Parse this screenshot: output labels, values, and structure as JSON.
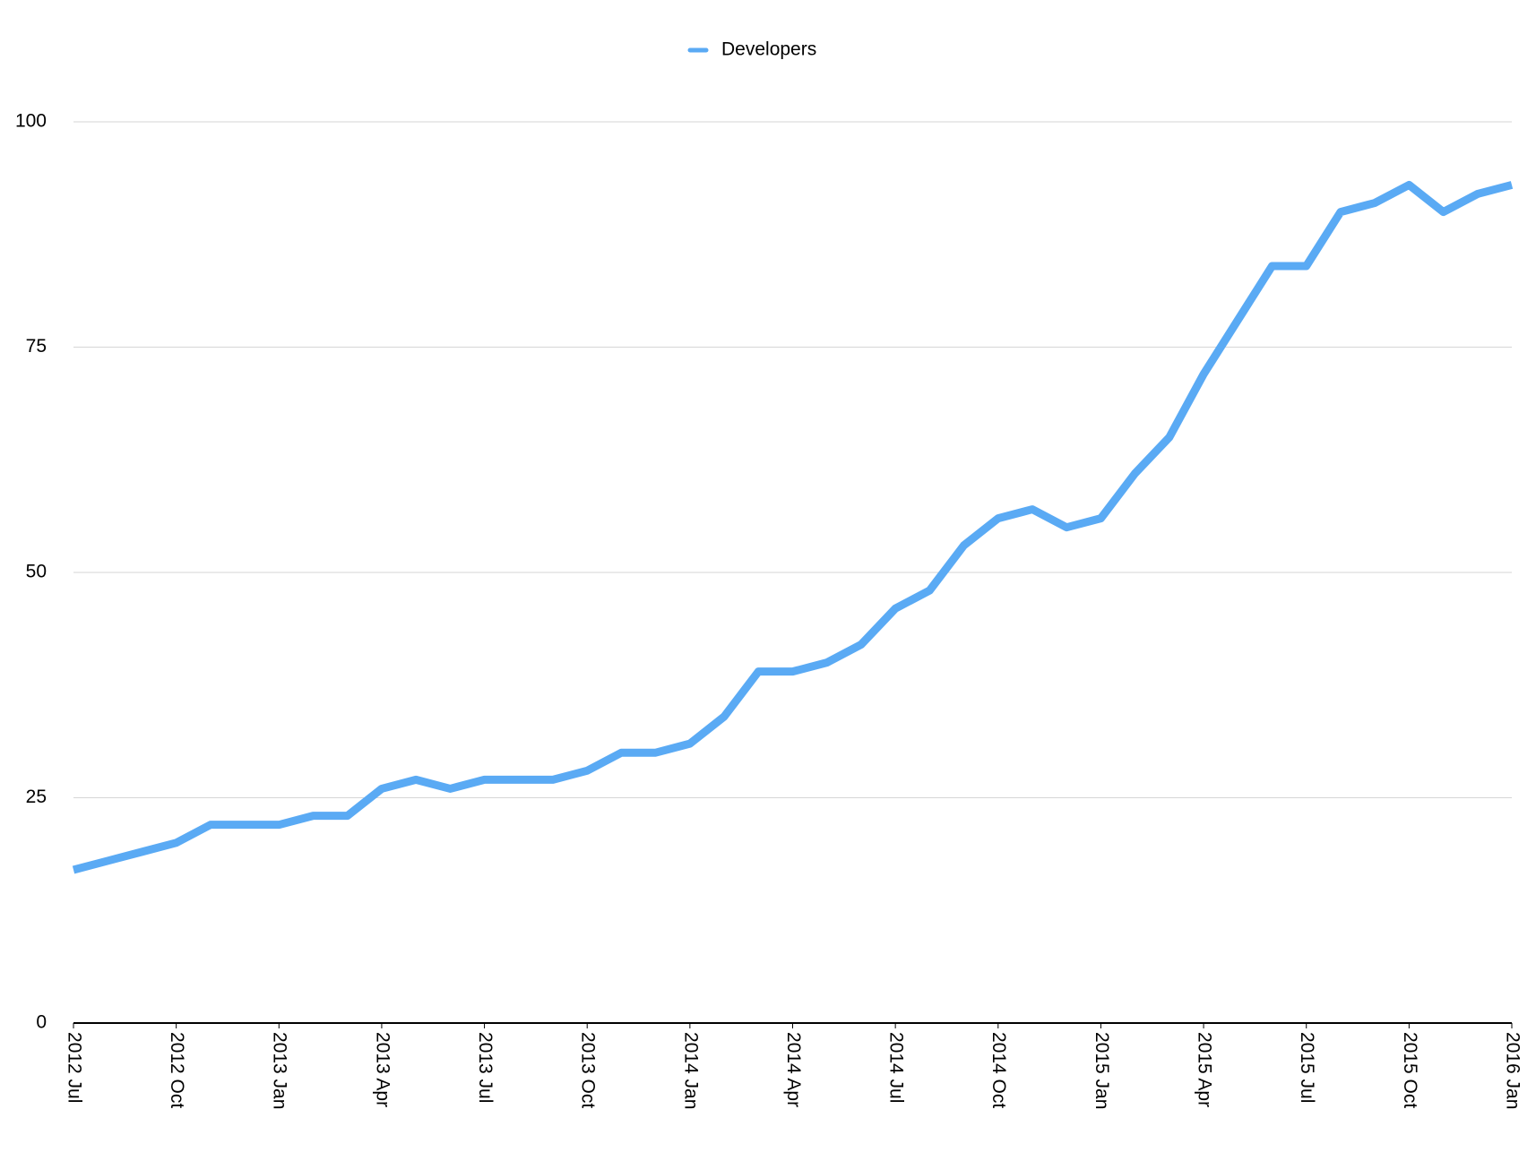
{
  "chart_data": {
    "type": "line",
    "categories": [
      "2012 Jul",
      null,
      null,
      "2012 Oct",
      null,
      null,
      "2013 Jan",
      null,
      null,
      "2013 Apr",
      null,
      null,
      "2013 Jul",
      null,
      null,
      "2013 Oct",
      null,
      null,
      "2014 Jan",
      null,
      null,
      "2014 Apr",
      null,
      null,
      "2014 Jul",
      null,
      null,
      "2014 Oct",
      null,
      null,
      "2015 Jan",
      null,
      null,
      "2015 Apr",
      null,
      null,
      "2015 Jul",
      null,
      null,
      "2015 Oct",
      null,
      null,
      "2016 Jan"
    ],
    "series": [
      {
        "name": "Developers",
        "color": "#5aaaf4",
        "values": [
          17,
          18,
          19,
          20,
          22,
          22,
          22,
          23,
          23,
          26,
          27,
          26,
          27,
          27,
          27,
          28,
          30,
          30,
          31,
          34,
          39,
          39,
          40,
          42,
          46,
          48,
          53,
          56,
          57,
          55,
          56,
          61,
          65,
          72,
          78,
          84,
          84,
          90,
          91,
          93,
          90,
          92,
          93
        ]
      }
    ],
    "ylim": [
      0,
      100
    ],
    "yticks": [
      0,
      25,
      50,
      75,
      100
    ],
    "grid": true,
    "legend": "top"
  }
}
